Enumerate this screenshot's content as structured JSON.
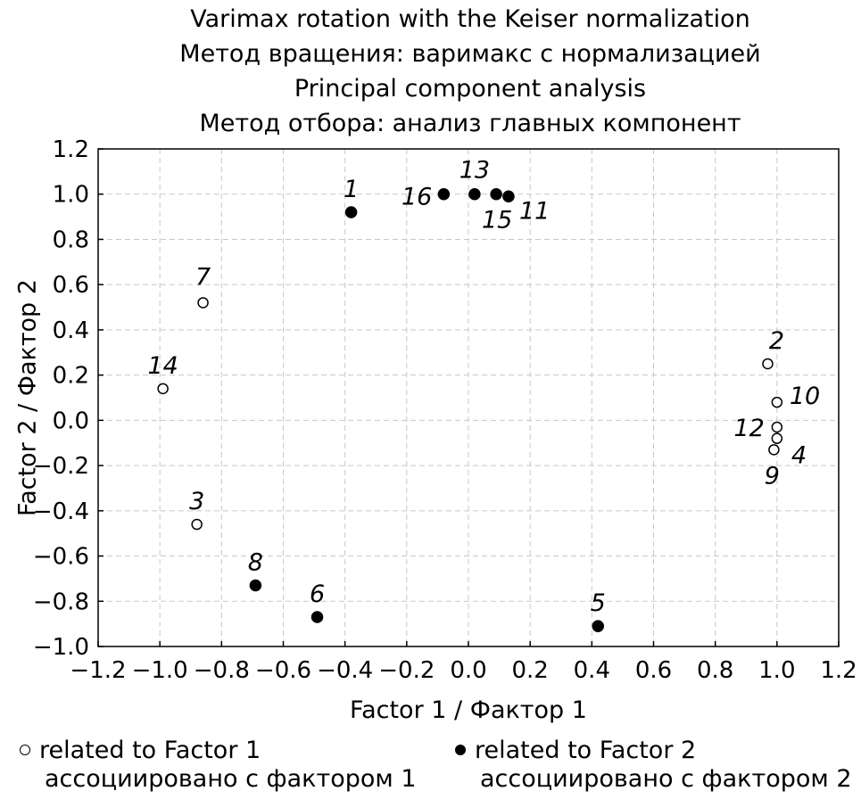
{
  "chart_data": {
    "type": "scatter",
    "title_lines": [
      "Varimax rotation with the Keiser normalization",
      "Метод вращения: варимакс с нормализацией",
      "Principal component analysis",
      "Метод отбора: анализ главных компонент"
    ],
    "xlabel": "Factor 1 / Фактор 1",
    "ylabel": "Factor 2 / Фактор 2",
    "xlim": [
      -1.2,
      1.2
    ],
    "ylim": [
      -1.0,
      1.2
    ],
    "xticks": [
      "−1.2",
      "−1.0",
      "−0.8",
      "−0.6",
      "−0.4",
      "−0.2",
      "0.0",
      "0.2",
      "0.4",
      "0.6",
      "0.8",
      "1.0",
      "1.2"
    ],
    "yticks": [
      "1.2",
      "1.0",
      "0.8",
      "0.6",
      "0.4",
      "0.2",
      "0.0",
      "−0.2",
      "−0.4",
      "−0.6",
      "−0.8",
      "−1.0"
    ],
    "grid": true,
    "series": [
      {
        "marker": "open",
        "points": [
          {
            "label": "7",
            "x": -0.86,
            "y": 0.52
          },
          {
            "label": "14",
            "x": -0.99,
            "y": 0.14
          },
          {
            "label": "3",
            "x": -0.88,
            "y": -0.46
          },
          {
            "label": "2",
            "x": 0.97,
            "y": 0.25
          },
          {
            "label": "10",
            "x": 1.0,
            "y": 0.08
          },
          {
            "label": "12",
            "x": 1.0,
            "y": -0.03
          },
          {
            "label": "4",
            "x": 1.0,
            "y": -0.08
          },
          {
            "label": "9",
            "x": 0.99,
            "y": -0.13
          }
        ]
      },
      {
        "marker": "filled",
        "points": [
          {
            "label": "1",
            "x": -0.38,
            "y": 0.92
          },
          {
            "label": "16",
            "x": -0.08,
            "y": 1.0
          },
          {
            "label": "13",
            "x": 0.02,
            "y": 1.0
          },
          {
            "label": "15",
            "x": 0.09,
            "y": 1.0
          },
          {
            "label": "11",
            "x": 0.13,
            "y": 0.99
          },
          {
            "label": "8",
            "x": -0.69,
            "y": -0.73
          },
          {
            "label": "6",
            "x": -0.49,
            "y": -0.87
          },
          {
            "label": "5",
            "x": 0.42,
            "y": -0.91
          }
        ]
      }
    ]
  },
  "legend": {
    "open_line1": "related to Factor 1",
    "open_line2": "ассоциировано с фактором 1",
    "filled_line1": "related to Factor 2",
    "filled_line2": "ассоциировано с фактором 2"
  }
}
